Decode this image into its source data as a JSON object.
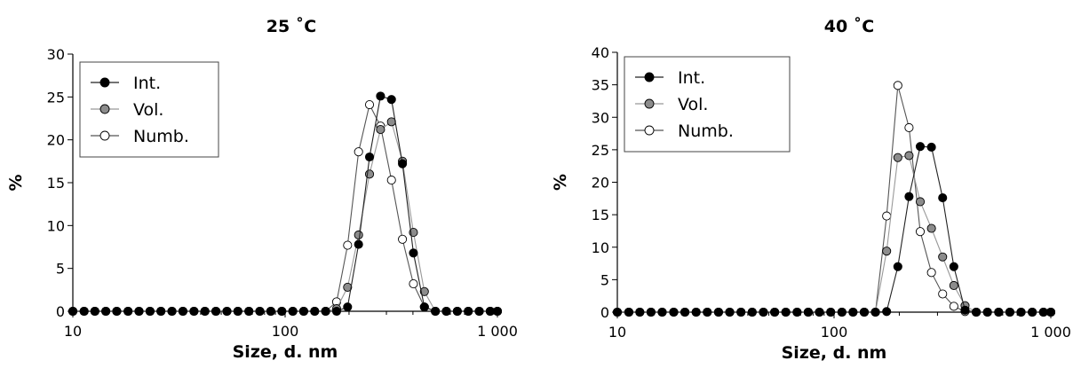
{
  "chart_data": [
    {
      "type": "line",
      "title": "25 ˚C",
      "xlabel": "Size, d. nm",
      "ylabel": "%",
      "xscale": "log",
      "xlim": [
        10,
        1000
      ],
      "ylim": [
        0,
        30
      ],
      "xticks": [
        10,
        100,
        1000
      ],
      "xtick_labels": [
        "10",
        "100",
        "1 000"
      ],
      "yticks": [
        0,
        5,
        10,
        15,
        20,
        25,
        30
      ],
      "legend_placement": "top-left",
      "x": [
        10,
        11.3,
        12.7,
        14.3,
        16.1,
        18.2,
        20.5,
        23.1,
        26.0,
        29.3,
        33.0,
        37.2,
        41.9,
        47.2,
        53.2,
        59.9,
        67.5,
        76.0,
        85.6,
        96.5,
        108.7,
        122.3,
        137.8,
        155.2,
        174.8,
        196.9,
        221.8,
        249.8,
        281.4,
        316.9,
        357.0,
        402.1,
        452.9,
        510.2,
        574.7,
        647.3,
        729.1,
        821.2,
        925.0,
        1000
      ],
      "series": [
        {
          "name": "Int.",
          "color": "#000000",
          "marker_fill": "#000000",
          "line_color": "#222222",
          "values": [
            0,
            0,
            0,
            0,
            0,
            0,
            0,
            0,
            0,
            0,
            0,
            0,
            0,
            0,
            0,
            0,
            0,
            0,
            0,
            0,
            0,
            0,
            0,
            0,
            0,
            0.5,
            7.8,
            18,
            25.1,
            24.7,
            17.2,
            6.8,
            0.5,
            0,
            0,
            0,
            0,
            0,
            0,
            0
          ]
        },
        {
          "name": "Vol.",
          "color": "#808080",
          "marker_fill": "#8c8c8c",
          "line_color": "#999999",
          "values": [
            0,
            0,
            0,
            0,
            0,
            0,
            0,
            0,
            0,
            0,
            0,
            0,
            0,
            0,
            0,
            0,
            0,
            0,
            0,
            0,
            0,
            0,
            0,
            0,
            0.3,
            2.8,
            8.9,
            16,
            21.2,
            22.1,
            17.5,
            9.2,
            2.3,
            0,
            0,
            0,
            0,
            0,
            0,
            0
          ]
        },
        {
          "name": "Numb.",
          "color": "#ffffff",
          "marker_fill": "#ffffff",
          "line_color": "#555555",
          "values": [
            0,
            0,
            0,
            0,
            0,
            0,
            0,
            0,
            0,
            0,
            0,
            0,
            0,
            0,
            0,
            0,
            0,
            0,
            0,
            0,
            0,
            0,
            0,
            0,
            1.1,
            7.7,
            18.6,
            24.1,
            21.6,
            15.3,
            8.4,
            3.2,
            0.5,
            0,
            0,
            0,
            0,
            0,
            0,
            0
          ]
        }
      ]
    },
    {
      "type": "line",
      "title": "40 ˚C",
      "xlabel": "Size, d. nm",
      "ylabel": "%",
      "xscale": "log",
      "xlim": [
        10,
        1000
      ],
      "ylim": [
        0,
        40
      ],
      "xticks": [
        10,
        100,
        1000
      ],
      "xtick_labels": [
        "10",
        "100",
        "1 000"
      ],
      "yticks": [
        0,
        5,
        10,
        15,
        20,
        25,
        30,
        35,
        40
      ],
      "legend_placement": "top-left",
      "x": [
        10,
        11.3,
        12.7,
        14.3,
        16.1,
        18.2,
        20.5,
        23.1,
        26.0,
        29.3,
        33.0,
        37.2,
        41.9,
        47.2,
        53.2,
        59.9,
        67.5,
        76.0,
        85.6,
        96.5,
        108.7,
        122.3,
        137.8,
        155.2,
        174.8,
        196.9,
        221.8,
        249.8,
        281.4,
        316.9,
        357.0,
        402.1,
        452.9,
        510.2,
        574.7,
        647.3,
        729.1,
        821.2,
        925.0,
        1000
      ],
      "series": [
        {
          "name": "Int.",
          "color": "#000000",
          "marker_fill": "#000000",
          "line_color": "#222222",
          "values": [
            0,
            0,
            0,
            0,
            0,
            0,
            0,
            0,
            0,
            0,
            0,
            0,
            0,
            0,
            0,
            0,
            0,
            0,
            0,
            0,
            0,
            0,
            0,
            0,
            0.1,
            7,
            17.8,
            25.5,
            25.4,
            17.6,
            7,
            0.3,
            0,
            0,
            0,
            0,
            0,
            0,
            0,
            0
          ]
        },
        {
          "name": "Vol.",
          "color": "#808080",
          "marker_fill": "#8c8c8c",
          "line_color": "#999999",
          "values": [
            0,
            0,
            0,
            0,
            0,
            0,
            0,
            0,
            0,
            0,
            0,
            0,
            0,
            0,
            0,
            0,
            0,
            0,
            0,
            0,
            0,
            0,
            0,
            0,
            9.4,
            23.8,
            24.1,
            17,
            12.9,
            8.5,
            4.1,
            1,
            0,
            0,
            0,
            0,
            0,
            0,
            0,
            0
          ]
        },
        {
          "name": "Numb.",
          "color": "#ffffff",
          "marker_fill": "#ffffff",
          "line_color": "#555555",
          "values": [
            0,
            0,
            0,
            0,
            0,
            0,
            0,
            0,
            0,
            0,
            0,
            0,
            0,
            0,
            0,
            0,
            0,
            0,
            0,
            0,
            0,
            0,
            0,
            0,
            14.8,
            34.9,
            28.4,
            12.4,
            6.1,
            2.8,
            0.9,
            0.1,
            0,
            0,
            0,
            0,
            0,
            0,
            0,
            0
          ]
        }
      ]
    }
  ]
}
